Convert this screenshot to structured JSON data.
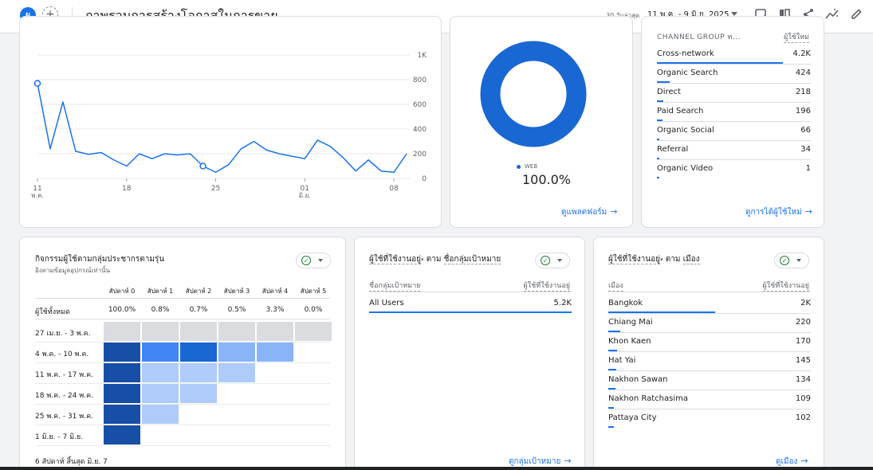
{
  "header": {
    "avatar_letter": "ผ",
    "title": "ภาพรวมการสร้างโอกาสในการขาย",
    "range_label": "30 วันล่าสุด",
    "range_dates": "11 พ.ค. - 9 มิ.ย. 2025"
  },
  "line_chart": {
    "chart_data": {
      "type": "line",
      "y_ticks": [
        "1K",
        "800",
        "600",
        "400",
        "200",
        "0"
      ],
      "ylim": [
        0,
        1000
      ],
      "x_ticks": [
        {
          "day": "11",
          "month": "พ.ค."
        },
        {
          "day": "18",
          "month": ""
        },
        {
          "day": "25",
          "month": ""
        },
        {
          "day": "01",
          "month": "มิ.ย."
        },
        {
          "day": "08",
          "month": ""
        }
      ],
      "values": [
        770,
        240,
        620,
        220,
        195,
        210,
        150,
        100,
        200,
        160,
        200,
        190,
        200,
        100,
        50,
        110,
        240,
        300,
        230,
        200,
        180,
        160,
        310,
        260,
        170,
        60,
        150,
        60,
        50,
        200
      ],
      "highlight_points": [
        0,
        13
      ]
    }
  },
  "platform_card": {
    "chart_data": {
      "type": "pie",
      "slices": [
        {
          "label": "WEB",
          "value": 100.0,
          "color": "#1967d2"
        }
      ]
    },
    "legend_label": "WEB",
    "legend_value": "100.0%",
    "link": "ดูแพลตฟอร์ม"
  },
  "channel_card": {
    "col1": "CHANNEL GROUP ท...",
    "col2": "ผู้ใช้ใหม่",
    "rows": [
      {
        "name": "Cross-network",
        "value": "4.2K",
        "share": 1.0
      },
      {
        "name": "Organic Search",
        "value": "424",
        "share": 0.1
      },
      {
        "name": "Direct",
        "value": "218",
        "share": 0.052
      },
      {
        "name": "Paid Search",
        "value": "196",
        "share": 0.047
      },
      {
        "name": "Organic Social",
        "value": "66",
        "share": 0.016
      },
      {
        "name": "Referral",
        "value": "34",
        "share": 0.008
      },
      {
        "name": "Organic Video",
        "value": "1",
        "share": 0.0
      }
    ],
    "link": "ดูการได้ผู้ใช้ใหม่"
  },
  "cohort_card": {
    "title": "กิจกรรมผู้ใช้ตามกลุ่มประชากรตามรุ่น",
    "subtitle": "อิงตามข้อมูลอุปกรณ์เท่านั้น",
    "weeks": [
      "สัปดาห์ 0",
      "สัปดาห์ 1",
      "สัปดาห์ 2",
      "สัปดาห์ 3",
      "สัปดาห์ 4",
      "สัปดาห์ 5"
    ],
    "all_users_label": "ผู้ใช้ทั้งหมด",
    "all_users_values": [
      "100.0%",
      "0.8%",
      "0.7%",
      "0.5%",
      "3.3%",
      "0.0%"
    ],
    "cohorts": [
      {
        "label": "27 เม.ย. - 3 พ.ค.",
        "cells": [
          "#dadce0",
          "#dadce0",
          "#dadce0",
          "#dadce0",
          "#dadce0",
          "#dadce0"
        ]
      },
      {
        "label": "4 พ.ค. - 10 พ.ค.",
        "cells": [
          "#174ea6",
          "#4285f4",
          "#1967d2",
          "#8ab4f8",
          "#8ab4f8"
        ]
      },
      {
        "label": "11 พ.ค. - 17 พ.ค.",
        "cells": [
          "#174ea6",
          "#aecbfa",
          "#aecbfa",
          "#aecbfa"
        ]
      },
      {
        "label": "18 พ.ค. - 24 พ.ค.",
        "cells": [
          "#174ea6",
          "#aecbfa",
          "#aecbfa"
        ]
      },
      {
        "label": "25 พ.ค. - 31 พ.ค.",
        "cells": [
          "#174ea6",
          "#aecbfa"
        ]
      },
      {
        "label": "1 มิ.ย. - 7 มิ.ย.",
        "cells": [
          "#174ea6"
        ]
      }
    ],
    "footer": "6 สัปดาห์ สิ้นสุด มิ.ย. 7"
  },
  "audience_card": {
    "title_metric": "ผู้ใช้ที่ใช้งานอยู่",
    "title_by": "ตาม",
    "title_dim": "ชื่อกลุ่มเป้าหมาย",
    "col1": "ชื่อกลุ่มเป้าหมาย",
    "col2": "ผู้ใช้ที่ใช้งานอยู่",
    "rows": [
      {
        "name": "All Users",
        "value": "5.2K",
        "share": 1.0
      }
    ],
    "link": "ดูกลุ่มเป้าหมาย"
  },
  "city_card": {
    "title_metric": "ผู้ใช้ที่ใช้งานอยู่",
    "title_by": "ตาม",
    "title_dim": "เมือง",
    "col1": "เมือง",
    "col2": "ผู้ใช้ที่ใช้งานอยู่",
    "rows": [
      {
        "name": "Bangkok",
        "value": "2K",
        "share": 1.0
      },
      {
        "name": "Chiang Mai",
        "value": "220",
        "share": 0.11
      },
      {
        "name": "Khon Kaen",
        "value": "170",
        "share": 0.085
      },
      {
        "name": "Hat Yai",
        "value": "145",
        "share": 0.073
      },
      {
        "name": "Nakhon Sawan",
        "value": "134",
        "share": 0.067
      },
      {
        "name": "Nakhon Ratchasima",
        "value": "109",
        "share": 0.055
      },
      {
        "name": "Pattaya City",
        "value": "102",
        "share": 0.051
      }
    ],
    "link": "ดูเมือง"
  }
}
